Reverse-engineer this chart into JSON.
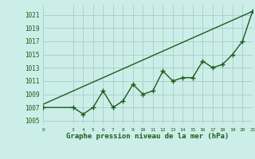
{
  "x": [
    0,
    3,
    4,
    5,
    6,
    7,
    8,
    9,
    10,
    11,
    12,
    13,
    14,
    15,
    16,
    17,
    18,
    19,
    20,
    21
  ],
  "y_zigzag": [
    1007,
    1007,
    1006,
    1007,
    1009.5,
    1007,
    1008,
    1010.5,
    1009,
    1009.5,
    1012.5,
    1011,
    1011.5,
    1011.5,
    1014,
    1013,
    1013.5,
    1015,
    1017,
    1021.5
  ],
  "trend_x": [
    0,
    21
  ],
  "trend_y": [
    1007.5,
    1021.5
  ],
  "xlim": [
    0,
    21
  ],
  "ylim": [
    1004.5,
    1022.5
  ],
  "yticks": [
    1005,
    1007,
    1009,
    1011,
    1013,
    1015,
    1017,
    1019,
    1021
  ],
  "xticks": [
    0,
    3,
    4,
    5,
    6,
    7,
    8,
    9,
    10,
    11,
    12,
    13,
    14,
    15,
    16,
    17,
    18,
    19,
    20,
    21
  ],
  "xlabel": "Graphe pression niveau de la mer (hPa)",
  "line_color": "#1a5c1a",
  "bg_color": "#cceee8",
  "grid_color": "#aaccc6",
  "tick_color": "#1a5c1a",
  "marker_size": 4,
  "line_width": 1.0
}
